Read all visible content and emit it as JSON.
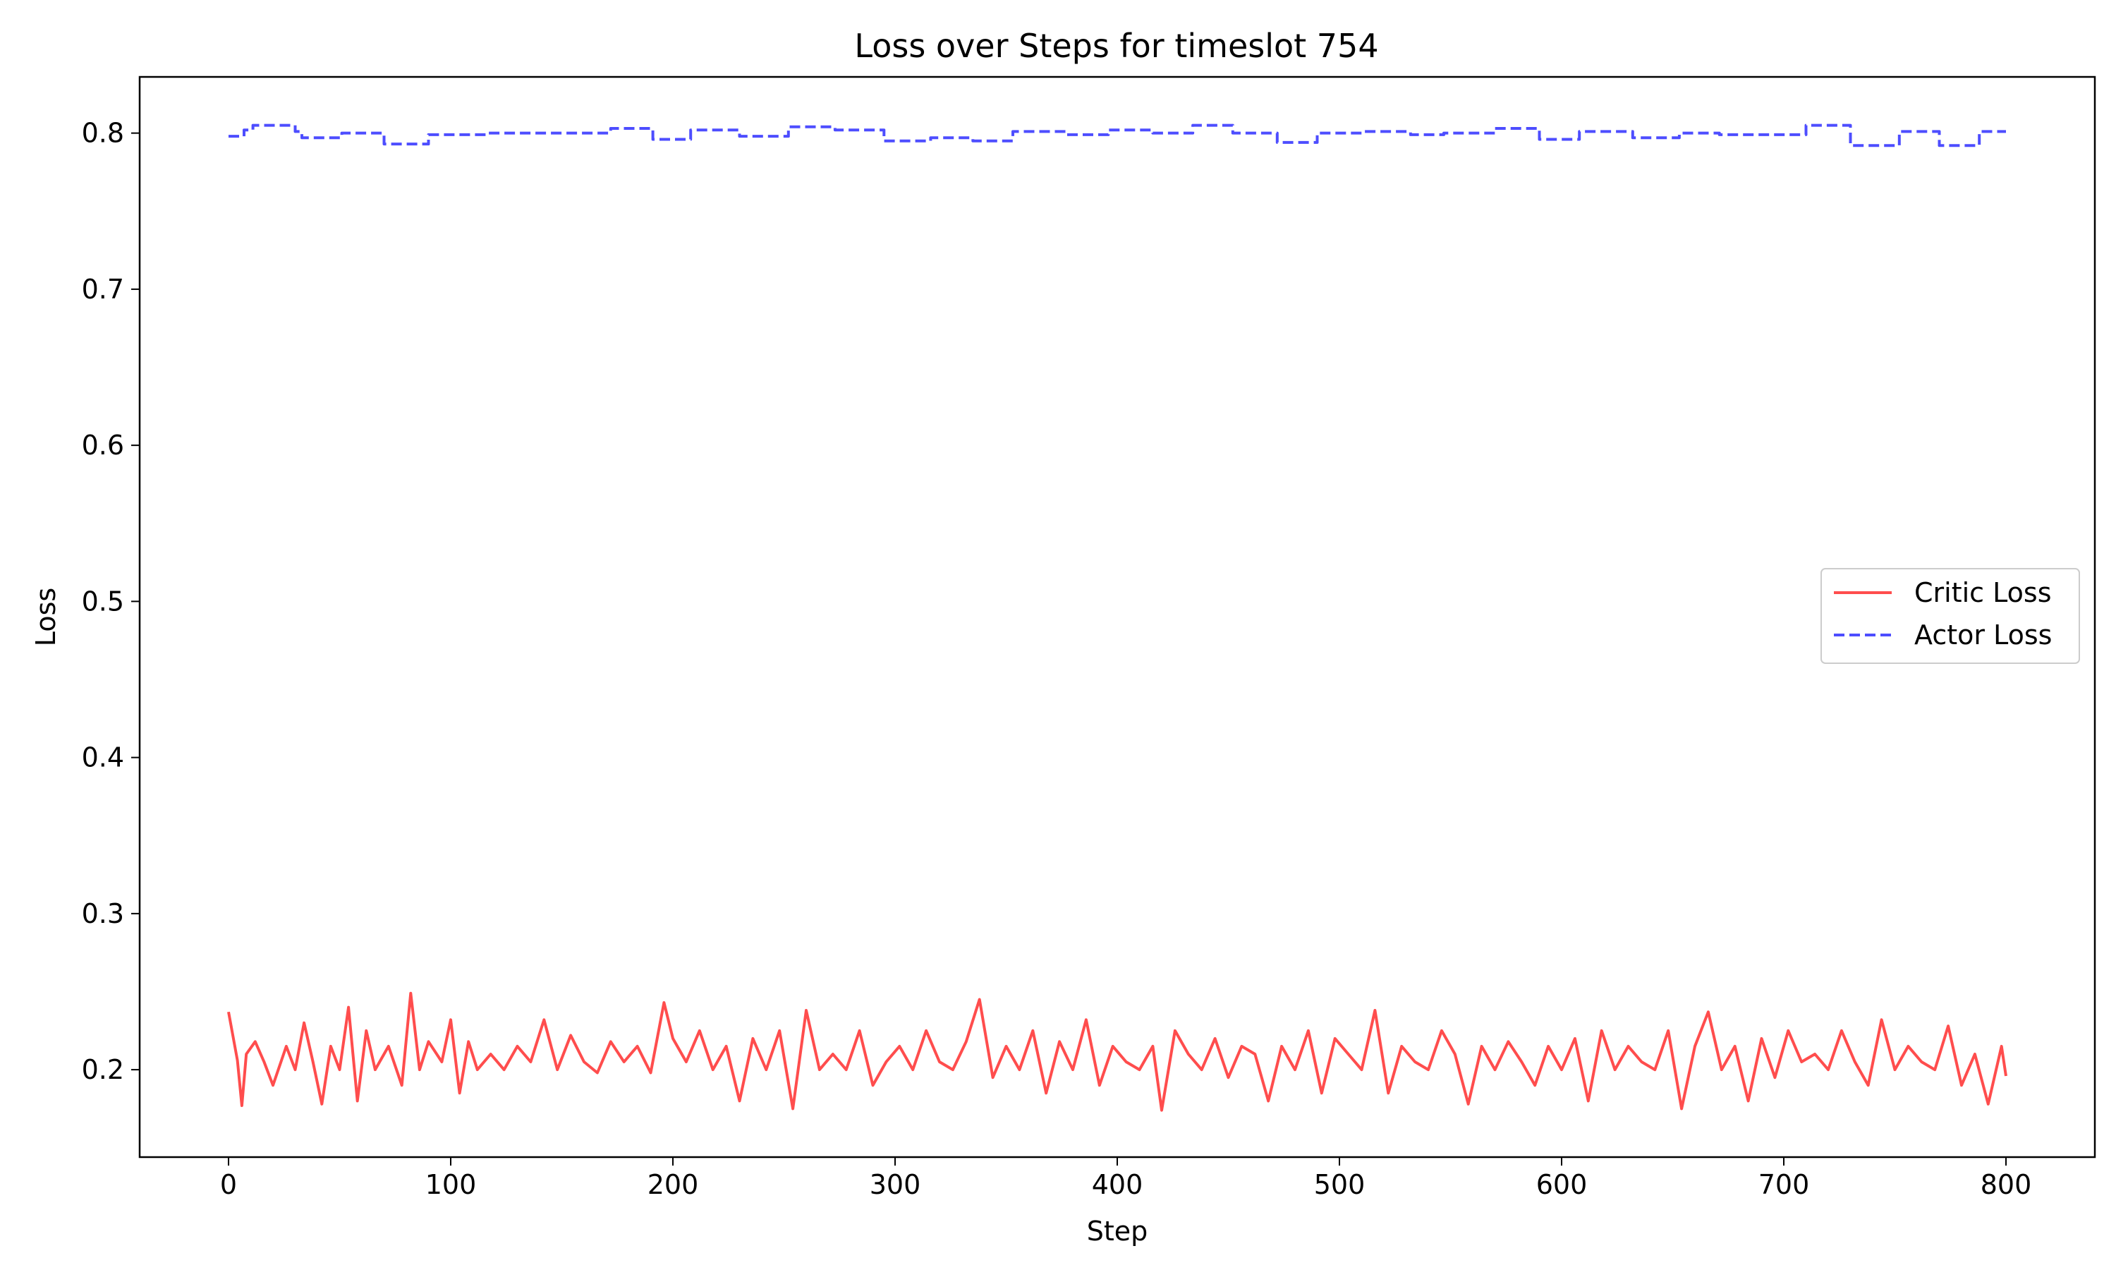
{
  "chart_data": {
    "type": "line",
    "title": "Loss over Steps for timeslot 754",
    "xlabel": "Step",
    "ylabel": "Loss",
    "xlim": [
      -40,
      840
    ],
    "ylim": [
      0.144,
      0.836
    ],
    "xticks": [
      0,
      100,
      200,
      300,
      400,
      500,
      600,
      700,
      800
    ],
    "yticks": [
      0.2,
      0.3,
      0.4,
      0.5,
      0.6,
      0.7,
      0.8
    ],
    "ytick_labels": [
      "0.2",
      "0.3",
      "0.4",
      "0.5",
      "0.6",
      "0.7",
      "0.8"
    ],
    "grid": false,
    "legend": "center-right",
    "series": [
      {
        "name": "Critic Loss",
        "color": "#ff4d4d",
        "style": "solid",
        "x": [
          0,
          4,
          6,
          8,
          12,
          16,
          20,
          26,
          30,
          34,
          38,
          42,
          46,
          50,
          54,
          58,
          62,
          66,
          72,
          78,
          82,
          86,
          90,
          96,
          100,
          104,
          108,
          112,
          118,
          124,
          130,
          136,
          142,
          148,
          154,
          160,
          166,
          172,
          178,
          184,
          190,
          196,
          200,
          206,
          212,
          218,
          224,
          230,
          236,
          242,
          248,
          254,
          260,
          266,
          272,
          278,
          284,
          290,
          296,
          302,
          308,
          314,
          320,
          326,
          332,
          338,
          344,
          350,
          356,
          362,
          368,
          374,
          380,
          386,
          392,
          398,
          404,
          410,
          416,
          420,
          426,
          432,
          438,
          444,
          450,
          456,
          462,
          468,
          474,
          480,
          486,
          492,
          498,
          504,
          510,
          516,
          522,
          528,
          534,
          540,
          546,
          552,
          558,
          564,
          570,
          576,
          582,
          588,
          594,
          600,
          606,
          612,
          618,
          624,
          630,
          636,
          642,
          648,
          654,
          660,
          666,
          672,
          678,
          684,
          690,
          696,
          702,
          708,
          714,
          720,
          726,
          732,
          738,
          744,
          750,
          756,
          762,
          768,
          774,
          780,
          786,
          792,
          798,
          800
        ],
        "values": [
          0.237,
          0.206,
          0.177,
          0.21,
          0.218,
          0.205,
          0.19,
          0.215,
          0.2,
          0.23,
          0.205,
          0.178,
          0.215,
          0.2,
          0.24,
          0.18,
          0.225,
          0.2,
          0.215,
          0.19,
          0.249,
          0.2,
          0.218,
          0.205,
          0.232,
          0.185,
          0.218,
          0.2,
          0.21,
          0.2,
          0.215,
          0.205,
          0.232,
          0.2,
          0.222,
          0.205,
          0.198,
          0.218,
          0.205,
          0.215,
          0.198,
          0.243,
          0.22,
          0.205,
          0.225,
          0.2,
          0.215,
          0.18,
          0.22,
          0.2,
          0.225,
          0.175,
          0.238,
          0.2,
          0.21,
          0.2,
          0.225,
          0.19,
          0.205,
          0.215,
          0.2,
          0.225,
          0.205,
          0.2,
          0.218,
          0.245,
          0.195,
          0.215,
          0.2,
          0.225,
          0.185,
          0.218,
          0.2,
          0.232,
          0.19,
          0.215,
          0.205,
          0.2,
          0.215,
          0.174,
          0.225,
          0.21,
          0.2,
          0.22,
          0.195,
          0.215,
          0.21,
          0.18,
          0.215,
          0.2,
          0.225,
          0.185,
          0.22,
          0.21,
          0.2,
          0.238,
          0.185,
          0.215,
          0.205,
          0.2,
          0.225,
          0.21,
          0.178,
          0.215,
          0.2,
          0.218,
          0.205,
          0.19,
          0.215,
          0.2,
          0.22,
          0.18,
          0.225,
          0.2,
          0.215,
          0.205,
          0.2,
          0.225,
          0.175,
          0.215,
          0.237,
          0.2,
          0.215,
          0.18,
          0.22,
          0.195,
          0.225,
          0.205,
          0.21,
          0.2,
          0.225,
          0.205,
          0.19,
          0.232,
          0.2,
          0.215,
          0.205,
          0.2,
          0.228,
          0.19,
          0.21,
          0.178,
          0.215,
          0.196
        ]
      },
      {
        "name": "Actor Loss",
        "color": "#4d4dff",
        "style": "dashed",
        "x": [
          0,
          7,
          7,
          11,
          11,
          30,
          30,
          33,
          33,
          51,
          51,
          70,
          70,
          90,
          90,
          117,
          117,
          172,
          172,
          191,
          191,
          208,
          208,
          230,
          230,
          252,
          252,
          273,
          273,
          295,
          295,
          316,
          316,
          335,
          335,
          353,
          353,
          377,
          377,
          396,
          396,
          416,
          416,
          434,
          434,
          452,
          452,
          472,
          472,
          490,
          490,
          510,
          510,
          532,
          532,
          547,
          547,
          570,
          570,
          590,
          590,
          608,
          608,
          632,
          632,
          653,
          653,
          671,
          671,
          710,
          710,
          730,
          730,
          752,
          752,
          770,
          770,
          788,
          788,
          800
        ],
        "values": [
          0.798,
          0.798,
          0.802,
          0.802,
          0.805,
          0.805,
          0.801,
          0.801,
          0.797,
          0.797,
          0.8,
          0.8,
          0.793,
          0.793,
          0.799,
          0.799,
          0.8,
          0.8,
          0.803,
          0.803,
          0.796,
          0.796,
          0.802,
          0.802,
          0.798,
          0.798,
          0.804,
          0.804,
          0.802,
          0.802,
          0.795,
          0.795,
          0.797,
          0.797,
          0.795,
          0.795,
          0.801,
          0.801,
          0.799,
          0.799,
          0.802,
          0.802,
          0.8,
          0.8,
          0.805,
          0.805,
          0.8,
          0.8,
          0.794,
          0.794,
          0.8,
          0.8,
          0.801,
          0.801,
          0.799,
          0.799,
          0.8,
          0.8,
          0.803,
          0.803,
          0.796,
          0.796,
          0.801,
          0.801,
          0.797,
          0.797,
          0.8,
          0.8,
          0.799,
          0.799,
          0.805,
          0.805,
          0.792,
          0.792,
          0.801,
          0.801,
          0.792,
          0.792,
          0.801,
          0.801
        ]
      }
    ]
  }
}
